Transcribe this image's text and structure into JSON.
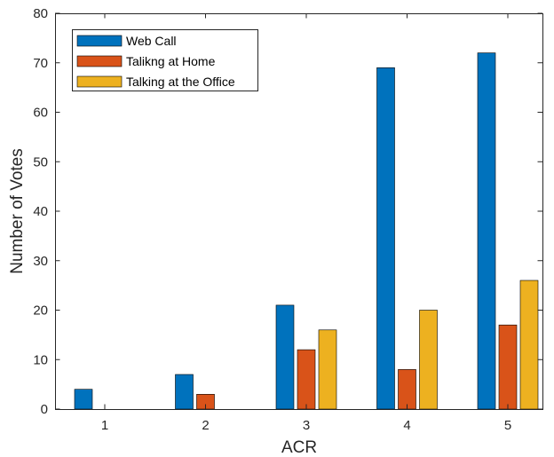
{
  "chart_data": {
    "type": "bar",
    "title": "",
    "xlabel": "ACR",
    "ylabel": "Number of Votes",
    "categories": [
      "1",
      "2",
      "3",
      "4",
      "5"
    ],
    "series": [
      {
        "name": "Web Call",
        "color": "#0072BD",
        "values": [
          4,
          7,
          21,
          69,
          72
        ]
      },
      {
        "name": "Talikng at Home",
        "color": "#D95319",
        "values": [
          0,
          3,
          12,
          8,
          17
        ]
      },
      {
        "name": "Talking at the Office",
        "color": "#EDB120",
        "values": [
          0,
          0,
          16,
          20,
          26
        ]
      }
    ],
    "ylim": [
      0,
      80
    ],
    "yticks": [
      "0",
      "10",
      "20",
      "30",
      "40",
      "50",
      "60",
      "70",
      "80"
    ],
    "grid": false,
    "legend_position": "top-left"
  }
}
